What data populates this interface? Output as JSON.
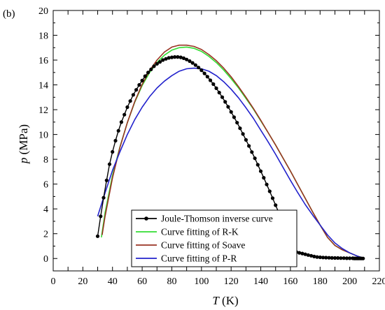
{
  "panel_label": "(b)",
  "chart_data": {
    "type": "line",
    "xlabel": {
      "var": "T",
      "unit": " (K)"
    },
    "ylabel": {
      "var": "p",
      "unit": " (MPa)"
    },
    "xlim": [
      0,
      220
    ],
    "ylim": [
      -1,
      20
    ],
    "xticks": [
      0,
      10,
      20,
      30,
      40,
      50,
      60,
      70,
      80,
      90,
      100,
      110,
      120,
      130,
      140,
      150,
      160,
      170,
      180,
      190,
      200,
      210,
      220
    ],
    "yticks": [
      0,
      2,
      4,
      6,
      8,
      10,
      12,
      14,
      16,
      18,
      20
    ],
    "grid": false,
    "legend_position": "bottom-right",
    "series": [
      {
        "name": "Joule-Thomson inverse curve",
        "color": "#000000",
        "marker": "circle",
        "x": [
          30,
          32,
          34,
          36,
          38,
          40,
          42,
          44,
          46,
          48,
          50,
          52,
          54,
          56,
          58,
          60,
          62,
          64,
          66,
          68,
          70,
          72,
          74,
          76,
          78,
          80,
          82,
          84,
          86,
          88,
          90,
          92,
          94,
          96,
          98,
          100,
          102,
          104,
          106,
          108,
          110,
          112,
          114,
          116,
          118,
          120,
          122,
          124,
          126,
          128,
          130,
          132,
          134,
          136,
          138,
          140,
          142,
          144,
          146,
          148,
          150,
          152,
          154,
          156,
          158,
          160,
          162,
          164,
          166,
          168,
          170,
          172,
          174,
          176,
          178,
          180,
          182,
          184,
          186,
          188,
          190,
          192,
          194,
          196,
          198,
          200,
          202,
          203,
          204,
          205,
          206,
          207,
          208,
          209
        ],
        "y": [
          1.8,
          3.4,
          4.9,
          6.3,
          7.6,
          8.6,
          9.5,
          10.3,
          11.0,
          11.6,
          12.2,
          12.7,
          13.2,
          13.6,
          14.0,
          14.35,
          14.7,
          15.0,
          15.25,
          15.5,
          15.7,
          15.85,
          16.0,
          16.1,
          16.18,
          16.22,
          16.25,
          16.25,
          16.22,
          16.15,
          16.05,
          15.92,
          15.77,
          15.6,
          15.4,
          15.18,
          14.93,
          14.66,
          14.37,
          14.06,
          13.73,
          13.38,
          13.01,
          12.63,
          12.23,
          11.82,
          11.39,
          10.95,
          10.5,
          10.04,
          9.56,
          9.08,
          8.58,
          8.08,
          7.56,
          7.04,
          6.51,
          5.97,
          5.42,
          4.86,
          4.3,
          3.73,
          3.15,
          2.57,
          1.98,
          1.38,
          0.78,
          0.52,
          0.46,
          0.4,
          0.34,
          0.28,
          0.22,
          0.16,
          0.12,
          0.1,
          0.08,
          0.07,
          0.06,
          0.05,
          0.04,
          0.04,
          0.03,
          0.03,
          0.02,
          0.02,
          0.02,
          0.01,
          0.01,
          0.01,
          0.01,
          0.01,
          0.0,
          0.0
        ]
      },
      {
        "name": "Curve fitting of R-K",
        "color": "#33dd33",
        "x": [
          32.5,
          35,
          40,
          45,
          50,
          55,
          60,
          65,
          70,
          75,
          80,
          85,
          90,
          95,
          100,
          105,
          110,
          115,
          120,
          125,
          130,
          135,
          140,
          145,
          150,
          155,
          160,
          165,
          170,
          175,
          180,
          185,
          190,
          195,
          200,
          205,
          209
        ],
        "y": [
          1.7,
          3.7,
          6.7,
          9.0,
          10.95,
          12.6,
          13.95,
          15.0,
          15.8,
          16.4,
          16.8,
          17.0,
          17.05,
          16.95,
          16.7,
          16.3,
          15.8,
          15.2,
          14.5,
          13.75,
          12.9,
          12.05,
          11.1,
          10.15,
          9.15,
          8.1,
          7.05,
          5.95,
          4.85,
          3.75,
          2.7,
          1.7,
          1.05,
          0.7,
          0.45,
          0.2,
          0.05
        ]
      },
      {
        "name": "Curve fitting of Soave",
        "color": "#993322",
        "x": [
          33,
          35,
          40,
          45,
          50,
          55,
          60,
          65,
          70,
          75,
          80,
          85,
          90,
          95,
          100,
          105,
          110,
          115,
          120,
          125,
          130,
          135,
          140,
          145,
          150,
          155,
          160,
          165,
          170,
          175,
          180,
          185,
          190,
          195,
          200,
          205,
          209
        ],
        "y": [
          1.9,
          3.4,
          6.5,
          8.95,
          10.95,
          12.65,
          14.05,
          15.15,
          16.0,
          16.65,
          17.05,
          17.2,
          17.2,
          17.1,
          16.85,
          16.45,
          15.95,
          15.35,
          14.65,
          13.85,
          13.0,
          12.1,
          11.15,
          10.15,
          9.15,
          8.1,
          7.05,
          5.95,
          4.85,
          3.75,
          2.7,
          1.7,
          1.05,
          0.7,
          0.45,
          0.2,
          0.05
        ]
      },
      {
        "name": "Curve fitting of P-R",
        "color": "#2222cc",
        "x": [
          30,
          35,
          40,
          45,
          50,
          55,
          60,
          65,
          70,
          75,
          80,
          85,
          90,
          95,
          100,
          105,
          110,
          115,
          120,
          125,
          130,
          135,
          140,
          145,
          150,
          155,
          160,
          165,
          170,
          175,
          180,
          185,
          190,
          195,
          200,
          205,
          209
        ],
        "y": [
          3.4,
          5.3,
          7.1,
          8.6,
          10.0,
          11.2,
          12.2,
          13.05,
          13.75,
          14.3,
          14.75,
          15.1,
          15.3,
          15.35,
          15.3,
          15.1,
          14.75,
          14.25,
          13.65,
          12.95,
          12.15,
          11.3,
          10.35,
          9.4,
          8.4,
          7.35,
          6.3,
          5.3,
          4.35,
          3.5,
          2.7,
          1.9,
          1.25,
          0.8,
          0.45,
          0.2,
          0.05
        ]
      }
    ]
  }
}
